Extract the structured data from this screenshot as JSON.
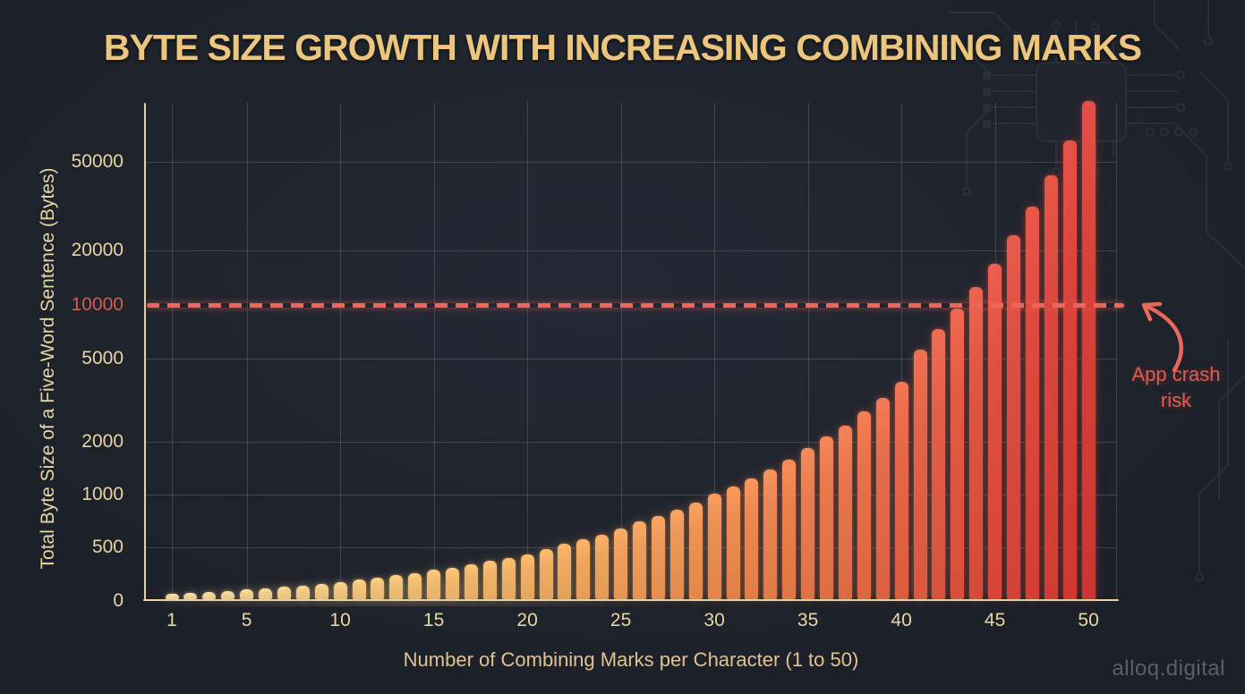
{
  "title": "BYTE SIZE GROWTH WITH INCREASING COMBINING MARKS",
  "annotation": {
    "line1": "App crash",
    "line2": "risk"
  },
  "footer": {
    "watermark": "alloq.digital"
  },
  "colors": {
    "background": "#20242d",
    "title_gold": "#edc67e",
    "axis_cream": "#e8d5a4",
    "x_title_tan": "#e3c292",
    "grid_gray": "#9ba5af",
    "spine_cream": "#e6d2a0",
    "threshold_red": "#ec675a",
    "highlight_label_red": "#d95b50",
    "annotation_red": "#e55b50",
    "watermark_gray": "#59606a",
    "bar_palette": [
      "#f3d9a2",
      "#f2c87e",
      "#efad63",
      "#ec8b52",
      "#e66c49",
      "#df5142",
      "#d9413a"
    ]
  },
  "chart_data": {
    "type": "bar",
    "title": "BYTE SIZE GROWTH WITH INCREASING COMBINING MARKS",
    "xlabel": "Number of Combining Marks per Character (1 to 50)",
    "ylabel": "Total Byte Size of a Five-Word Sentence (Bytes)",
    "x": [
      1,
      2,
      3,
      4,
      5,
      6,
      7,
      8,
      9,
      10,
      11,
      12,
      13,
      14,
      15,
      16,
      17,
      18,
      19,
      20,
      21,
      22,
      23,
      24,
      25,
      26,
      27,
      28,
      29,
      30,
      31,
      32,
      33,
      34,
      35,
      36,
      37,
      38,
      39,
      40,
      41,
      42,
      43,
      44,
      45,
      46,
      47,
      48,
      49,
      50
    ],
    "values": [
      50,
      58,
      68,
      76,
      92,
      102,
      118,
      128,
      144,
      160,
      186,
      204,
      228,
      246,
      272,
      296,
      322,
      356,
      382,
      414,
      466,
      510,
      542,
      576,
      625,
      686,
      736,
      800,
      880,
      990,
      1085,
      1205,
      1357,
      1543,
      1800,
      2080,
      2343,
      2740,
      3178,
      3795,
      5485,
      7150,
      9330,
      12270,
      16480,
      22980,
      30900,
      42740,
      61300,
      92100
    ],
    "y_scale": "log-piecewise",
    "ylim": [
      0,
      100000
    ],
    "grid": true,
    "legend": "none",
    "x_ticks": [
      1,
      5,
      10,
      15,
      20,
      25,
      30,
      35,
      40,
      45,
      50
    ],
    "y_ticks": [
      {
        "label": "0",
        "value": 0
      },
      {
        "label": "500",
        "value": 500
      },
      {
        "label": "1000",
        "value": 1000
      },
      {
        "label": "2000",
        "value": 2000
      },
      {
        "label": "5000",
        "value": 5000
      },
      {
        "label": "10000",
        "value": 10000,
        "highlight": true
      },
      {
        "label": "20000",
        "value": 20000
      },
      {
        "label": "50000",
        "value": 50000
      }
    ],
    "threshold": {
      "value": 10000,
      "label": "App crash risk",
      "style": "dashed"
    },
    "y_anchor_fractions": [
      [
        0,
        1.0
      ],
      [
        500,
        0.8923
      ],
      [
        1000,
        0.7864
      ],
      [
        2000,
        0.6804
      ],
      [
        5000,
        0.5135
      ],
      [
        10000,
        0.4057
      ],
      [
        20000,
        0.2962
      ],
      [
        50000,
        0.1185
      ]
    ],
    "bar_palette_stops": [
      [
        0,
        "#f3d9a2"
      ],
      [
        0.2,
        "#f2c87e"
      ],
      [
        0.42,
        "#efad63"
      ],
      [
        0.62,
        "#ec8b52"
      ],
      [
        0.78,
        "#e66c49"
      ],
      [
        0.9,
        "#df5142"
      ],
      [
        1,
        "#d9413a"
      ]
    ]
  }
}
